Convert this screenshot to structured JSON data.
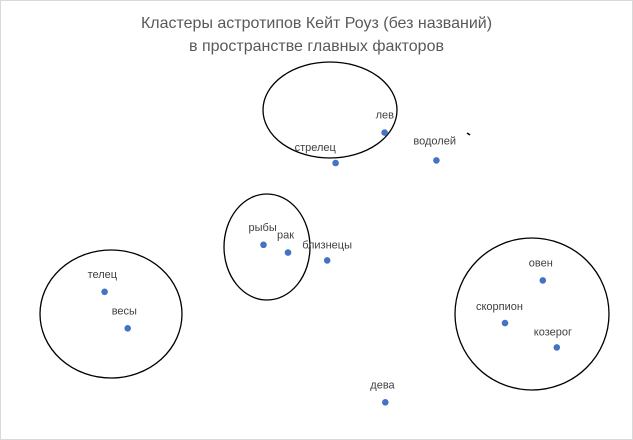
{
  "chart_data": {
    "type": "scatter",
    "title_line1": "Кластеры астротипов Кейт Роуз (без названий)",
    "title_line2": "в пространстве главных факторов",
    "marker_color": "#4472c4",
    "points": [
      {
        "label": "лев",
        "x": 0.98,
        "y": 1.35
      },
      {
        "label": "стрелец",
        "x": 0.28,
        "y": 1.0
      },
      {
        "label": "водолей",
        "x": 1.72,
        "y": 1.03
      },
      {
        "label": "рыбы",
        "x": -0.75,
        "y": 0.06
      },
      {
        "label": "рак",
        "x": -0.4,
        "y": -0.03
      },
      {
        "label": "близнецы",
        "x": 0.16,
        "y": -0.12
      },
      {
        "label": "телец",
        "x": -3.02,
        "y": -0.48
      },
      {
        "label": "весы",
        "x": -2.69,
        "y": -0.9
      },
      {
        "label": "овен",
        "x": 3.24,
        "y": -0.35
      },
      {
        "label": "скорпион",
        "x": 2.7,
        "y": -0.84
      },
      {
        "label": "козерог",
        "x": 3.44,
        "y": -1.12
      },
      {
        "label": "дева",
        "x": 0.99,
        "y": -1.75
      }
    ],
    "clusters": [
      {
        "members": [
          "лев",
          "стрелец"
        ]
      },
      {
        "members": [
          "рыбы",
          "рак"
        ]
      },
      {
        "members": [
          "телец",
          "весы"
        ]
      },
      {
        "members": [
          "овен",
          "скорпион",
          "козерог"
        ]
      }
    ]
  }
}
